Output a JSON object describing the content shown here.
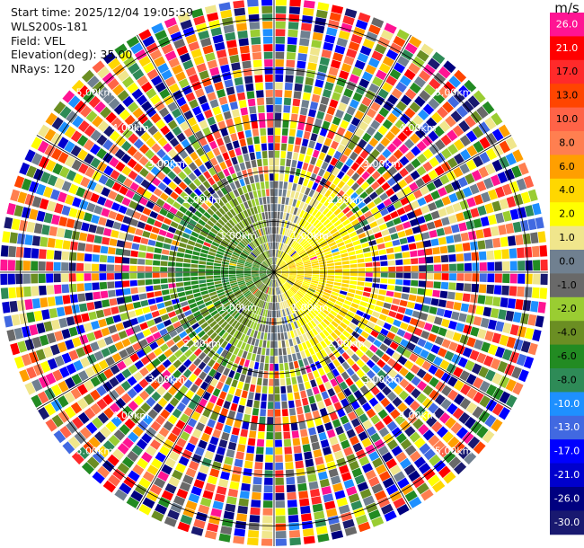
{
  "info": {
    "start_time": "Start time: 2025/12/04 19:05:59",
    "instrument": "WLS200s-181",
    "field": "Field: VEL",
    "elevation": "Elevation(deg): 35.00",
    "nrays": "NRays: 120"
  },
  "chart_data": {
    "type": "polar-ppi",
    "nrays": 120,
    "range_rings_km": [
      1.0,
      2.0,
      3.0,
      4.0,
      5.0
    ],
    "range_ring_labels": [
      "1.00km",
      "2.00km",
      "3.00km",
      "4.00km",
      "5.00km"
    ],
    "max_range_km": 5.4,
    "colorbar": {
      "unit": "m/s",
      "tick_labels": [
        "26.0",
        "21.0",
        "17.0",
        "13.0",
        "10.0",
        "8.0",
        "6.0",
        "4.0",
        "2.0",
        "1.0",
        "0.0",
        "-1.0",
        "-2.0",
        "-4.0",
        "-6.0",
        "-8.0",
        "-10.0",
        "-13.0",
        "-17.0",
        "-21.0",
        "-26.0",
        "-30.0"
      ],
      "colors": [
        "#ff1493",
        "#ff0000",
        "#ff2a2a",
        "#ff4500",
        "#ff6347",
        "#ff7f50",
        "#ff9f00",
        "#ffd700",
        "#ffff00",
        "#f0e68c",
        "#708090",
        "#696969",
        "#9acd32",
        "#6b8e23",
        "#228b22",
        "#2e8b57",
        "#1e90ff",
        "#4169e1",
        "#0000ff",
        "#0000cd",
        "#000080",
        "#191970"
      ]
    },
    "velocity_pattern": {
      "near_range_km": 1.8,
      "positive_sector": "east/south-east",
      "negative_sector": "west",
      "far_range": "noise"
    }
  }
}
